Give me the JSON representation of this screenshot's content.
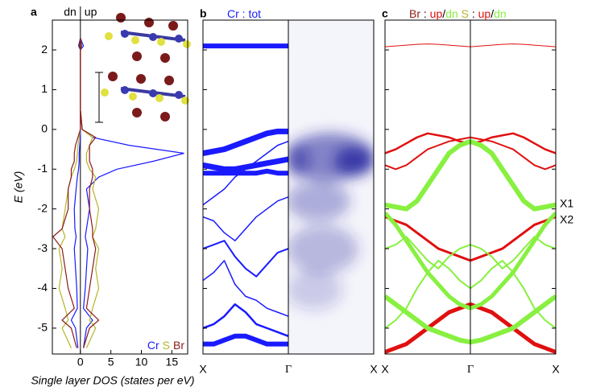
{
  "chart_data": [
    {
      "type": "dos",
      "label": "a",
      "ylabel": "E (eV)",
      "xlabel": "Single layer DOS (states per eV)",
      "spin_labels": [
        "dn",
        "up"
      ],
      "ylim": [
        -5.65,
        2.75
      ],
      "yticks": [
        2,
        1,
        0,
        -1,
        -2,
        -3,
        -4,
        -5
      ],
      "xlim": [
        -4.6,
        17.6
      ],
      "xticks": [
        0,
        5,
        10,
        15
      ],
      "energies": [
        -5.5,
        -5,
        -4.8,
        -4.5,
        -4,
        -3.5,
        -3,
        -2.7,
        -2.5,
        -2,
        -1.5,
        -1.2,
        -1,
        -0.8,
        -0.6,
        -0.4,
        -0.2,
        0,
        0.5,
        1,
        1.5,
        2,
        2.1,
        2.3
      ],
      "series": [
        {
          "name": "Cr",
          "color": "#1a1aff",
          "up": [
            0.5,
            1,
            2,
            0.5,
            0.8,
            1,
            1.2,
            0.8,
            1,
            1.5,
            1,
            3,
            6,
            12,
            17,
            8,
            2,
            0.3,
            0,
            0,
            0,
            0,
            0.5,
            0
          ],
          "dn": [
            -0.4,
            -0.8,
            -1.5,
            -0.5,
            -0.6,
            -0.8,
            -1,
            -0.7,
            -0.9,
            -1,
            -0.7,
            -0.5,
            -0.3,
            -0.2,
            -0.2,
            -0.1,
            0,
            0,
            0,
            0,
            0,
            0,
            -0.3,
            0
          ]
        },
        {
          "name": "S",
          "color": "#b5b52a",
          "up": [
            1,
            2.5,
            1.5,
            2,
            3,
            2.5,
            3,
            2,
            2.5,
            3,
            2,
            2.5,
            1.5,
            1,
            1,
            1.5,
            2,
            0.3,
            0,
            0,
            0,
            0,
            0.2,
            0
          ],
          "dn": [
            -1.5,
            -3,
            -2,
            -2.5,
            -3.5,
            -3,
            -3.5,
            -2.5,
            -3,
            -2.5,
            -2,
            -1.5,
            -1,
            -0.6,
            -0.5,
            -0.4,
            -0.2,
            0,
            0,
            0,
            0,
            0,
            -0.2,
            0
          ]
        },
        {
          "name": "Br",
          "color": "#8b1a1a",
          "up": [
            0.5,
            1.5,
            3,
            1,
            1.5,
            2,
            2.5,
            2,
            2,
            1.5,
            1.5,
            2,
            2,
            1.5,
            1.5,
            1.5,
            2.5,
            0.3,
            0,
            0,
            0,
            0,
            0.2,
            0
          ],
          "dn": [
            -0.6,
            -1.5,
            -3,
            -1,
            -2,
            -2.5,
            -3,
            -4.5,
            -3,
            -2,
            -2,
            -1.5,
            -1.5,
            -1,
            -1,
            -0.8,
            -0.4,
            0,
            0,
            0,
            0,
            0,
            -0.2,
            0
          ]
        }
      ]
    },
    {
      "type": "bands",
      "label": "b",
      "kpoints": [
        "X",
        "Γ",
        "X"
      ],
      "title_parts": [
        {
          "text": "Cr : tot",
          "color": "#1a1aff"
        }
      ],
      "series": [
        {
          "color": "#1a1aff",
          "weight": 6,
          "values": [
            2.1,
            2.1,
            2.1,
            2.1,
            2.1,
            2.1,
            2.1,
            2.1,
            2.1
          ]
        },
        {
          "color": "#1a1aff",
          "weight": 7,
          "values": [
            -0.6,
            -0.55,
            -0.5,
            -0.4,
            -0.3,
            -0.2,
            -0.1,
            -0.05,
            -0.05
          ]
        },
        {
          "color": "#1a1aff",
          "weight": 7,
          "values": [
            -0.9,
            -0.95,
            -1,
            -1,
            -0.95,
            -0.9,
            -0.85,
            -0.8,
            -0.75
          ]
        },
        {
          "color": "#1a1aff",
          "weight": 6,
          "values": [
            -1.1,
            -1.1,
            -1.1,
            -1.1,
            -1.1,
            -1.1,
            -1.05,
            -1.1,
            -1.1
          ]
        },
        {
          "color": "#1a1aff",
          "weight": 1.5,
          "values": [
            -1.9,
            -1.7,
            -1.5,
            -1.2,
            -1,
            -0.8,
            -0.6,
            -0.4,
            -0.3
          ]
        },
        {
          "color": "#1a1aff",
          "weight": 1.5,
          "values": [
            -2.2,
            -2.3,
            -2.6,
            -2.8,
            -2.5,
            -2.2,
            -2,
            -1.8,
            -1.7
          ]
        },
        {
          "color": "#1a1aff",
          "weight": 2,
          "values": [
            -3,
            -2.9,
            -2.8,
            -3.2,
            -3.5,
            -3.7,
            -3.4,
            -3.1,
            -3
          ]
        },
        {
          "color": "#1a1aff",
          "weight": 1.5,
          "values": [
            -3.8,
            -3.6,
            -3.3,
            -3.9,
            -4.2,
            -4.3,
            -4.5,
            -4.6,
            -4.7
          ]
        },
        {
          "color": "#1a1aff",
          "weight": 2.5,
          "values": [
            -5,
            -4.9,
            -4.7,
            -4.4,
            -4.6,
            -4.9,
            -5,
            -5.1,
            -5.2
          ]
        },
        {
          "color": "#1a1aff",
          "weight": 6,
          "values": [
            -5.4,
            -5.4,
            -5.3,
            -5.2,
            -5.2,
            -5.3,
            -5.4,
            -5.4,
            -5.4
          ]
        }
      ]
    },
    {
      "type": "bands",
      "label": "c",
      "kpoints": [
        "X",
        "Γ",
        "X"
      ],
      "mirror": true,
      "title_parts": [
        {
          "text": "Br",
          "color": "#8b1a1a"
        },
        {
          "text": " : ",
          "color": "#000000"
        },
        {
          "text": "up",
          "color": "#e01010"
        },
        {
          "text": "/",
          "color": "#000000"
        },
        {
          "text": "dn",
          "color": "#88f040"
        },
        {
          "text": "     S",
          "color": "#b5b52a"
        },
        {
          "text": " : ",
          "color": "#000000"
        },
        {
          "text": "up",
          "color": "#e01010"
        },
        {
          "text": "/",
          "color": "#000000"
        },
        {
          "text": "dn",
          "color": "#88f040"
        }
      ],
      "annotations": [
        "X1",
        "X2"
      ],
      "series": [
        {
          "color": "#e01010",
          "weight": 1,
          "values": [
            2.08,
            2.1,
            2.12,
            2.14,
            2.15,
            2.14,
            2.12,
            2.1,
            2.08
          ]
        },
        {
          "color": "#e01010",
          "weight": 2.5,
          "values": [
            -0.6,
            -0.5,
            -0.35,
            -0.2,
            -0.1,
            -0.15,
            -0.2,
            -0.3,
            -0.35
          ]
        },
        {
          "color": "#e01010",
          "weight": 2,
          "values": [
            -0.9,
            -1,
            -0.9,
            -0.7,
            -0.5,
            -0.4,
            -0.3,
            -0.25,
            -0.2
          ]
        },
        {
          "color": "#e01010",
          "weight": 3,
          "values": [
            -2.2,
            -2.3,
            -2.4,
            -2.6,
            -2.8,
            -3,
            -3.1,
            -3.2,
            -3.3
          ]
        },
        {
          "color": "#e01010",
          "weight": 5,
          "values": [
            -5.6,
            -5.5,
            -5.4,
            -5.2,
            -5,
            -4.8,
            -4.6,
            -4.5,
            -4.4
          ]
        },
        {
          "color": "#88f040",
          "weight": 6,
          "values": [
            -1.9,
            -1.95,
            -2,
            -1.8,
            -1.4,
            -1,
            -0.6,
            -0.4,
            -0.3
          ]
        },
        {
          "color": "#88f040",
          "weight": 5,
          "values": [
            -2.1,
            -2.4,
            -2.8,
            -3.2,
            -3.6,
            -3.9,
            -4.2,
            -4.4,
            -4.5
          ]
        },
        {
          "color": "#88f040",
          "weight": 6,
          "values": [
            -4.2,
            -4.4,
            -4.6,
            -4.8,
            -5,
            -5.1,
            -5.2,
            -5.3,
            -5.35
          ]
        },
        {
          "color": "#88f040",
          "weight": 2,
          "values": [
            -3,
            -2.9,
            -2.7,
            -3,
            -3.3,
            -3.5,
            -3.2,
            -3,
            -2.9
          ]
        },
        {
          "color": "#88f040",
          "weight": 2,
          "values": [
            -5,
            -4.8,
            -4.5,
            -4,
            -3.6,
            -3.3,
            -3.5,
            -3.8,
            -4
          ]
        }
      ]
    }
  ]
}
